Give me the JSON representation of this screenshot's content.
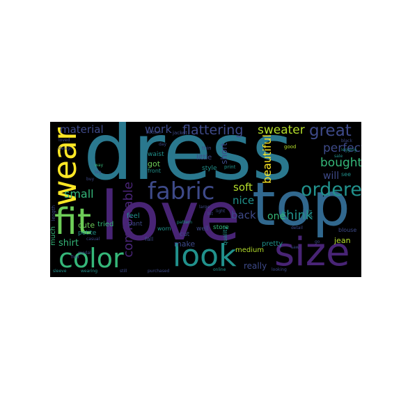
{
  "palette": {
    "background": "#000000",
    "teal": "#2a788e",
    "tealLight": "#35b779",
    "purple": "#482475",
    "purpleMid": "#3e4a89",
    "green": "#6ece58",
    "yellow": "#fde725",
    "yellowGreen": "#b5de2b",
    "blue": "#31688e",
    "cyan": "#21918c"
  },
  "words": [
    {
      "text": "dress",
      "color": "teal"
    },
    {
      "text": "love",
      "color": "purple"
    },
    {
      "text": "top",
      "color": "blue"
    },
    {
      "text": "size",
      "color": "purple"
    },
    {
      "text": "look",
      "color": "cyan"
    },
    {
      "text": "color",
      "color": "tealLight"
    },
    {
      "text": "fit",
      "color": "green"
    },
    {
      "text": "wear",
      "color": "yellow"
    },
    {
      "text": "fabric",
      "color": "purpleMid"
    },
    {
      "text": "ordered",
      "color": "cyan"
    },
    {
      "text": "great",
      "color": "purpleMid"
    },
    {
      "text": "flattering",
      "color": "purpleMid"
    },
    {
      "text": "sweater",
      "color": "yellowGreen"
    },
    {
      "text": "perfect",
      "color": "purpleMid"
    },
    {
      "text": "bought",
      "color": "tealLight"
    },
    {
      "text": "material",
      "color": "purpleMid"
    },
    {
      "text": "work",
      "color": "purpleMid"
    },
    {
      "text": "comfortable",
      "color": "purple"
    },
    {
      "text": "soft",
      "color": "yellowGreen"
    },
    {
      "text": "nice",
      "color": "cyan"
    },
    {
      "text": "back",
      "color": "purpleMid"
    },
    {
      "text": "beautiful",
      "color": "yellow"
    },
    {
      "text": "will",
      "color": "purpleMid"
    },
    {
      "text": "think",
      "color": "cyan"
    },
    {
      "text": "one",
      "color": "tealLight"
    },
    {
      "text": "shirt",
      "color": "tealLight"
    },
    {
      "text": "small",
      "color": "tealLight"
    },
    {
      "text": "cute",
      "color": "green"
    },
    {
      "text": "tried",
      "color": "tealLight"
    },
    {
      "text": "make",
      "color": "purpleMid"
    },
    {
      "text": "jean",
      "color": "yellowGreen"
    },
    {
      "text": "really",
      "color": "purpleMid"
    },
    {
      "text": "pretty",
      "color": "cyan"
    },
    {
      "text": "medium",
      "color": "yellowGreen"
    },
    {
      "text": "much",
      "color": "tealLight"
    },
    {
      "text": "petite",
      "color": "cyan"
    },
    {
      "text": "feel",
      "color": "cyan"
    },
    {
      "text": "pant",
      "color": "purpleMid"
    },
    {
      "text": "got",
      "color": "green"
    },
    {
      "text": "little",
      "color": "purpleMid"
    },
    {
      "text": "short",
      "color": "purpleMid"
    },
    {
      "text": "waist",
      "color": "cyan"
    },
    {
      "text": "style",
      "color": "cyan"
    },
    {
      "text": "front",
      "color": "cyan"
    },
    {
      "text": "store",
      "color": "tealLight"
    },
    {
      "text": "well",
      "color": "purpleMid"
    },
    {
      "text": "worn",
      "color": "cyan"
    },
    {
      "text": "cut",
      "color": "purpleMid"
    },
    {
      "text": "fall",
      "color": "purpleMid"
    },
    {
      "text": "quality",
      "color": "cyan"
    },
    {
      "text": "length",
      "color": "purpleMid"
    },
    {
      "text": "blouse",
      "color": "purpleMid"
    },
    {
      "text": "see",
      "color": "cyan"
    },
    {
      "text": "thin",
      "color": "purpleMid"
    },
    {
      "text": "print",
      "color": "cyan"
    },
    {
      "text": "jacket",
      "color": "purpleMid"
    },
    {
      "text": "design",
      "color": "purpleMid"
    },
    {
      "text": "loved",
      "color": "purpleMid"
    },
    {
      "text": "way",
      "color": "tealLight"
    },
    {
      "text": "big",
      "color": "purpleMid"
    },
    {
      "text": "buy",
      "color": "purpleMid"
    },
    {
      "text": "casual",
      "color": "purpleMid"
    },
    {
      "text": "find",
      "color": "purpleMid"
    },
    {
      "text": "sleeve",
      "color": "cyan"
    },
    {
      "text": "wearing",
      "color": "cyan"
    },
    {
      "text": "still",
      "color": "purpleMid"
    },
    {
      "text": "purchased",
      "color": "purpleMid"
    },
    {
      "text": "online",
      "color": "cyan"
    },
    {
      "text": "looking",
      "color": "purpleMid"
    },
    {
      "text": "bottom",
      "color": "purpleMid"
    },
    {
      "text": "pattern",
      "color": "cyan"
    },
    {
      "text": "light",
      "color": "purpleMid"
    },
    {
      "text": "good",
      "color": "yellowGreen"
    },
    {
      "text": "black",
      "color": "purpleMid"
    },
    {
      "text": "sale",
      "color": "cyan"
    },
    {
      "text": "legging",
      "color": "cyan"
    },
    {
      "text": "saw",
      "color": "purpleMid"
    },
    {
      "text": "modal",
      "color": "purpleMid"
    },
    {
      "text": "large",
      "color": "purpleMid"
    },
    {
      "text": "day",
      "color": "purpleMid"
    },
    {
      "text": "bit",
      "color": "purpleMid"
    },
    {
      "text": "go",
      "color": "purpleMid"
    },
    {
      "text": "detail",
      "color": "purpleMid"
    },
    {
      "text": "pair",
      "color": "cyan"
    }
  ]
}
